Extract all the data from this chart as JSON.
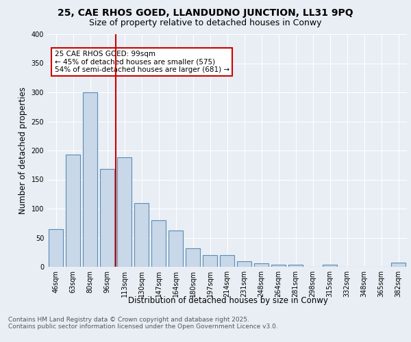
{
  "title_line1": "25, CAE RHOS GOED, LLANDUDNO JUNCTION, LL31 9PQ",
  "title_line2": "Size of property relative to detached houses in Conwy",
  "xlabel": "Distribution of detached houses by size in Conwy",
  "ylabel": "Number of detached properties",
  "categories": [
    "46sqm",
    "63sqm",
    "80sqm",
    "96sqm",
    "113sqm",
    "130sqm",
    "147sqm",
    "164sqm",
    "180sqm",
    "197sqm",
    "214sqm",
    "231sqm",
    "248sqm",
    "264sqm",
    "281sqm",
    "298sqm",
    "315sqm",
    "332sqm",
    "348sqm",
    "365sqm",
    "382sqm"
  ],
  "values": [
    65,
    193,
    300,
    168,
    188,
    109,
    80,
    62,
    32,
    20,
    20,
    9,
    6,
    4,
    4,
    0,
    4,
    0,
    0,
    0,
    7
  ],
  "bar_color": "#c8d8e8",
  "bar_edge_color": "#5a8ab5",
  "red_line_index": 3,
  "annotation_text": "25 CAE RHOS GOED: 99sqm\n← 45% of detached houses are smaller (575)\n54% of semi-detached houses are larger (681) →",
  "annotation_box_color": "#ffffff",
  "annotation_box_edge": "#cc0000",
  "ylim": [
    0,
    400
  ],
  "yticks": [
    0,
    50,
    100,
    150,
    200,
    250,
    300,
    350,
    400
  ],
  "background_color": "#e8eef4",
  "plot_bg_color": "#e8eef4",
  "footer_line1": "Contains HM Land Registry data © Crown copyright and database right 2025.",
  "footer_line2": "Contains public sector information licensed under the Open Government Licence v3.0.",
  "title_fontsize": 10,
  "subtitle_fontsize": 9,
  "tick_fontsize": 7,
  "label_fontsize": 8.5,
  "footer_fontsize": 6.5,
  "ann_fontsize": 7.5
}
